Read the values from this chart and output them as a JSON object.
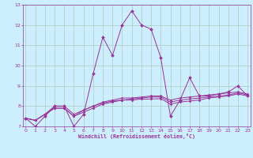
{
  "xlabel": "Windchill (Refroidissement éolien,°C)",
  "ylabel": "",
  "background_color": "#cceeff",
  "line_color": "#993399",
  "grid_color": "#aaccbb",
  "xmin": 0,
  "xmax": 23,
  "ymin": 7,
  "ymax": 13,
  "x_hours": [
    0,
    1,
    2,
    3,
    4,
    5,
    6,
    7,
    8,
    9,
    10,
    11,
    12,
    13,
    14,
    15,
    16,
    17,
    18,
    19,
    20,
    21,
    22,
    23
  ],
  "line1": [
    7.4,
    7.0,
    7.5,
    8.0,
    8.0,
    7.0,
    7.6,
    9.6,
    11.4,
    10.5,
    12.0,
    12.7,
    12.0,
    11.8,
    10.4,
    7.5,
    8.3,
    9.4,
    8.5,
    8.5,
    8.6,
    8.7,
    9.0,
    8.5
  ],
  "line2": [
    7.4,
    7.3,
    7.6,
    7.9,
    7.9,
    7.5,
    7.7,
    7.9,
    8.1,
    8.2,
    8.3,
    8.3,
    8.35,
    8.35,
    8.37,
    8.1,
    8.2,
    8.25,
    8.3,
    8.4,
    8.45,
    8.5,
    8.6,
    8.5
  ],
  "line3": [
    7.4,
    7.3,
    7.6,
    7.9,
    7.9,
    7.5,
    7.8,
    8.0,
    8.2,
    8.3,
    8.4,
    8.4,
    8.45,
    8.5,
    8.5,
    8.3,
    8.4,
    8.45,
    8.5,
    8.55,
    8.6,
    8.65,
    8.7,
    8.6
  ],
  "line4": [
    7.4,
    7.3,
    7.6,
    8.0,
    8.0,
    7.6,
    7.8,
    8.0,
    8.15,
    8.25,
    8.3,
    8.35,
    8.4,
    8.45,
    8.45,
    8.2,
    8.3,
    8.35,
    8.4,
    8.45,
    8.5,
    8.55,
    8.65,
    8.55
  ]
}
